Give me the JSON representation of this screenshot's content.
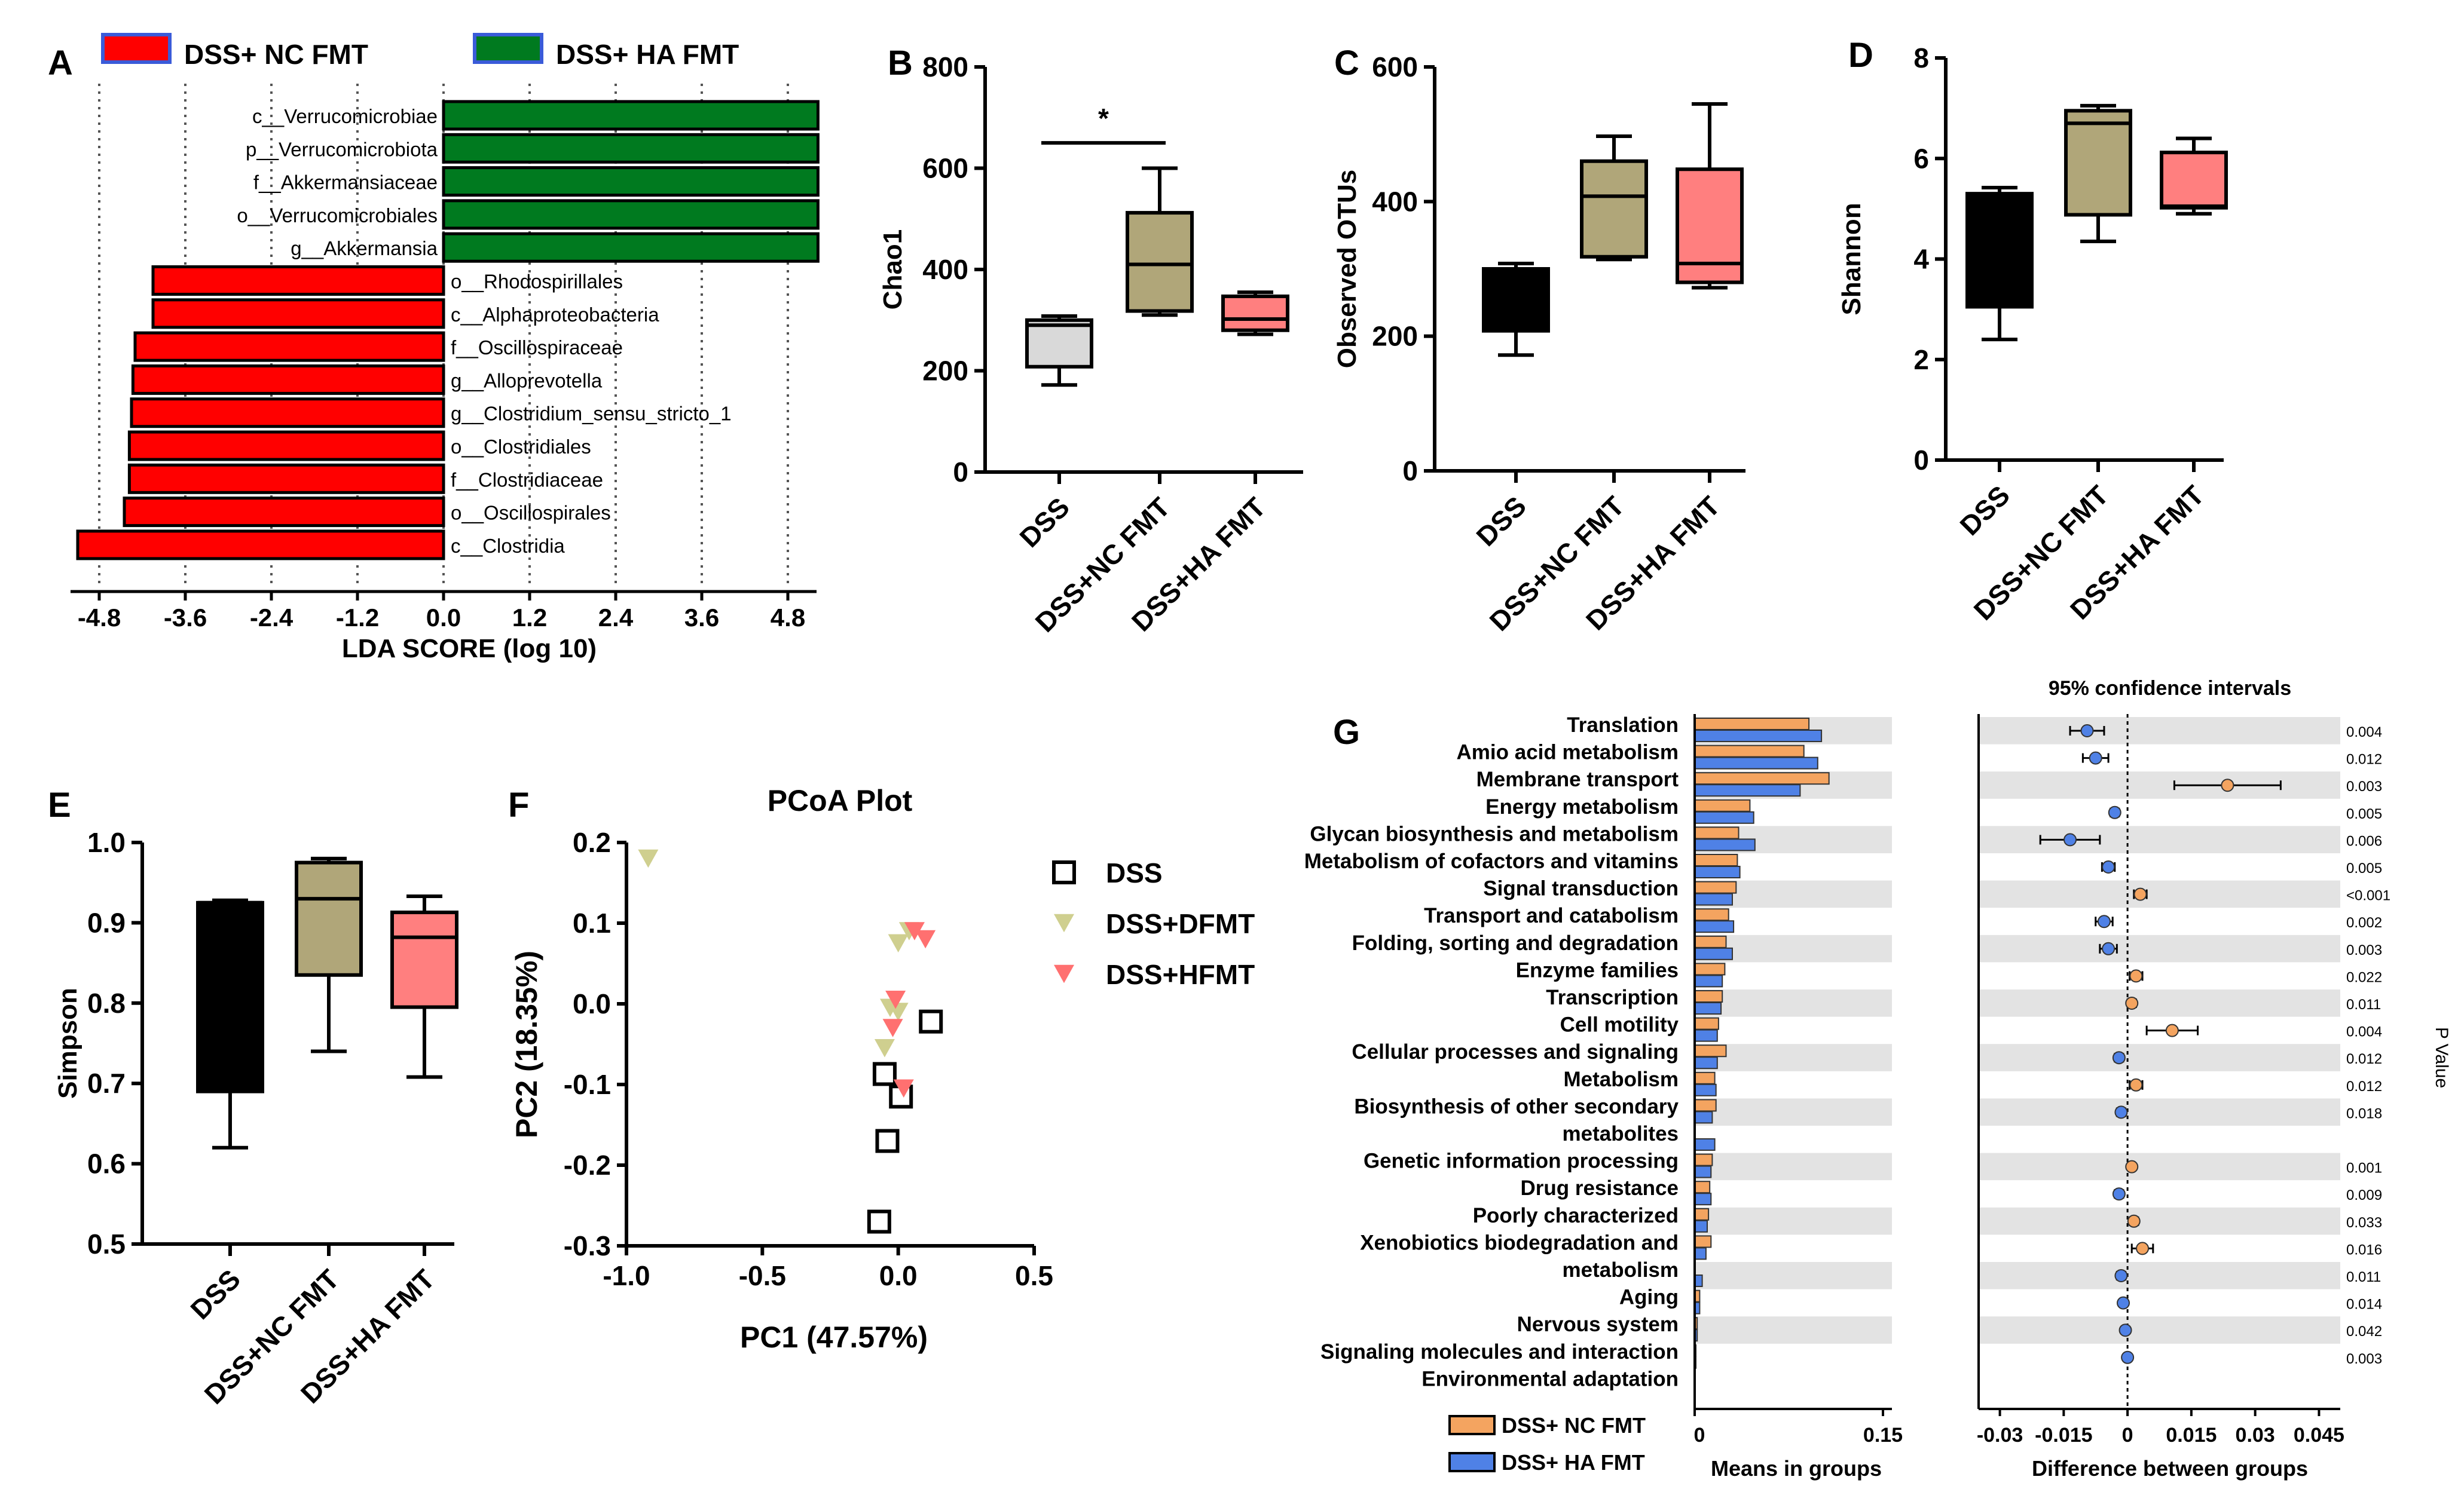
{
  "colors": {
    "nc_red": "#ff0000",
    "ha_green": "#007a1f",
    "dss_black": "#000000",
    "dss_gray": "#d9d9d9",
    "nc_olive": "#b0a679",
    "ha_pink": "#ff7f7f",
    "orange": "#f4a460",
    "blue": "#4f81e6",
    "stripe": "#e3e3e3"
  },
  "chart_data": [
    {
      "panel": "A",
      "type": "bar",
      "orientation": "horizontal",
      "legend": [
        "DSS+ NC FMT",
        "DSS+ HA FMT"
      ],
      "xlabel": "LDA SCORE (log 10)",
      "xlim": [
        -5.2,
        5.2
      ],
      "xticks": [
        -4.8,
        -3.6,
        -2.4,
        -1.2,
        0.0,
        1.2,
        2.4,
        3.6,
        4.8
      ],
      "xtick_labels": [
        "-4.8",
        "-3.6",
        "-2.4",
        "-1.2",
        "0.0",
        "1.2",
        "2.4",
        "3.6",
        "4.8"
      ],
      "categories": [
        "c__Verrucomicrobiae",
        "p__Verrucomicrobiota",
        "f__Akkermansiaceae",
        "o__Verrucomicrobiales",
        "g__Akkermansia",
        "o__Rhodospirillales",
        "c__Alphaproteobacteria",
        "f__Oscillospiraceae",
        "g__Alloprevotella",
        "g__Clostridium_sensu_stricto_1",
        "o__Clostridiales",
        "f__Clostridiaceae",
        "o__Oscillospirales",
        "c__Clostridia"
      ],
      "values": [
        5.22,
        5.22,
        5.22,
        5.22,
        5.22,
        -4.05,
        -4.05,
        -4.3,
        -4.33,
        -4.35,
        -4.38,
        -4.38,
        -4.45,
        -5.1
      ]
    },
    {
      "panel": "B",
      "type": "box",
      "ylabel": "Chao1",
      "ylim": [
        0,
        800
      ],
      "yticks": [
        "0",
        "200",
        "400",
        "600",
        "800"
      ],
      "categories": [
        "DSS",
        "DSS+NC FMT",
        "DSS+HA FMT"
      ],
      "boxes": [
        {
          "min": 172,
          "q1": 208,
          "median": 290,
          "q3": 300,
          "max": 308
        },
        {
          "min": 310,
          "q1": 318,
          "median": 410,
          "q3": 512,
          "max": 600
        },
        {
          "min": 272,
          "q1": 280,
          "median": 302,
          "q3": 347,
          "max": 355
        }
      ],
      "significance": {
        "label": "*",
        "between": [
          0,
          1
        ],
        "y": 650
      }
    },
    {
      "panel": "C",
      "type": "box",
      "ylabel": "Observed OTUs",
      "ylim": [
        0,
        600
      ],
      "yticks": [
        "0",
        "200",
        "400",
        "600"
      ],
      "categories": [
        "DSS",
        "DSS+NC FMT",
        "DSS+HA FMT"
      ],
      "boxes": [
        {
          "min": 172,
          "q1": 208,
          "median": 298,
          "q3": 300,
          "max": 308
        },
        {
          "min": 314,
          "q1": 318,
          "median": 408,
          "q3": 460,
          "max": 497
        },
        {
          "min": 272,
          "q1": 280,
          "median": 308,
          "q3": 448,
          "max": 545
        }
      ]
    },
    {
      "panel": "D",
      "type": "box",
      "ylabel": "Shannon",
      "ylim": [
        0,
        8
      ],
      "yticks": [
        "0",
        "2",
        "4",
        "6",
        "8"
      ],
      "categories": [
        "DSS",
        "DSS+NC FMT",
        "DSS+HA FMT"
      ],
      "boxes": [
        {
          "min": 2.4,
          "q1": 3.05,
          "median": 5.25,
          "q3": 5.3,
          "max": 5.42
        },
        {
          "min": 4.35,
          "q1": 4.88,
          "median": 6.7,
          "q3": 6.95,
          "max": 7.05
        },
        {
          "min": 4.9,
          "q1": 5.02,
          "median": 5.05,
          "q3": 6.12,
          "max": 6.4
        }
      ]
    },
    {
      "panel": "E",
      "type": "box",
      "ylabel": "Simpson",
      "ylim": [
        0.5,
        1.0
      ],
      "yticks": [
        "0.5",
        "0.6",
        "0.7",
        "0.8",
        "0.9",
        "1.0"
      ],
      "categories": [
        "DSS",
        "DSS+NC FMT",
        "DSS+HA FMT"
      ],
      "boxes": [
        {
          "min": 0.62,
          "q1": 0.69,
          "median": 0.925,
          "q3": 0.925,
          "max": 0.928
        },
        {
          "min": 0.74,
          "q1": 0.835,
          "median": 0.93,
          "q3": 0.975,
          "max": 0.98
        },
        {
          "min": 0.708,
          "q1": 0.795,
          "median": 0.882,
          "q3": 0.913,
          "max": 0.933
        }
      ]
    },
    {
      "panel": "F",
      "type": "scatter",
      "title": "PCoA Plot",
      "xlabel": "PC1 (47.57%)",
      "ylabel": "PC2 (18.35%)",
      "xlim": [
        -1.0,
        0.5
      ],
      "ylim": [
        -0.3,
        0.2
      ],
      "xticks": [
        "-1.0",
        "-0.5",
        "0.0",
        "0.5"
      ],
      "yticks": [
        "-0.3",
        "-0.2",
        "-0.1",
        "0.0",
        "0.1",
        "0.2"
      ],
      "series": [
        {
          "name": "DSS",
          "marker": "square",
          "points": [
            [
              0.12,
              -0.022
            ],
            [
              -0.05,
              -0.087
            ],
            [
              0.01,
              -0.115
            ],
            [
              -0.04,
              -0.17
            ],
            [
              -0.07,
              -0.27
            ]
          ]
        },
        {
          "name": "DSS+DFMT",
          "marker": "triangle",
          "points": [
            [
              -0.92,
              0.18
            ],
            [
              0.04,
              0.09
            ],
            [
              0.0,
              0.075
            ],
            [
              -0.03,
              -0.005
            ],
            [
              -0.05,
              -0.055
            ],
            [
              0.0,
              -0.01
            ]
          ]
        },
        {
          "name": "DSS+HFMT",
          "marker": "triangle",
          "points": [
            [
              0.1,
              0.08
            ],
            [
              -0.01,
              0.005
            ],
            [
              -0.02,
              -0.03
            ],
            [
              0.02,
              -0.105
            ],
            [
              0.06,
              0.09
            ]
          ]
        }
      ]
    },
    {
      "panel": "G",
      "type": "bar",
      "orientation": "horizontal",
      "legend": [
        "DSS+ NC FMT",
        "DSS+ HA FMT"
      ],
      "left_xlabel": "Means in groups",
      "left_xticks": [
        "0",
        "0.15"
      ],
      "left_xlim": [
        0,
        0.15
      ],
      "ci_title": "95% confidence intervals",
      "right_xlabel": "Difference  between groups",
      "right_xticks": [
        "-0.03",
        "-0.015",
        "0",
        "0.015",
        "0.03",
        "0.045"
      ],
      "right_xlim": [
        -0.035,
        0.05
      ],
      "pvalue_label": "P Value",
      "categories": [
        "Translation",
        "Amio acid metabolism",
        "Membrane transport",
        "Energy metabolism",
        "Glycan biosynthesis and metabolism",
        "Metabolism  of cofactors and vitamins",
        "Signal transduction",
        "Transport and catabolism",
        "Folding, sorting and degradation",
        "Enzyme families",
        "Transcription",
        "Cell motility",
        "Cellular processes and signaling",
        "Metabolism",
        "Biosynthesis  of other secondary",
        "metabolites",
        "Genetic information  processing",
        "Drug resistance",
        "Poorly characterized",
        "Xenobiotics biodegradation  and",
        "metabolism",
        "Aging",
        "Nervous system",
        "Signaling molecules  and interaction",
        "Environmental adaptation"
      ],
      "series": [
        {
          "name": "DSS+ NC FMT",
          "values": [
            0.091,
            0.087,
            0.107,
            0.044,
            0.035,
            0.034,
            0.033,
            0.027,
            0.025,
            0.024,
            0.022,
            0.019,
            0.025,
            0.016,
            0.017,
            null,
            0.014,
            0.012,
            0.011,
            0.013,
            null,
            0.004,
            0.002,
            0.001,
            null
          ]
        },
        {
          "name": "DSS+ HA FMT",
          "values": [
            0.101,
            0.098,
            0.084,
            0.047,
            0.048,
            0.036,
            0.03,
            0.031,
            0.03,
            0.022,
            0.021,
            0.018,
            0.018,
            0.017,
            0.014,
            0.016,
            0.013,
            0.013,
            0.01,
            0.009,
            0.006,
            0.004,
            0.002,
            0.001,
            0.0
          ]
        }
      ],
      "ci": [
        {
          "diff": -0.0095,
          "lo": -0.0135,
          "hi": -0.0055,
          "p": "0.004"
        },
        {
          "diff": -0.0075,
          "lo": -0.0105,
          "hi": -0.0045,
          "p": "0.012"
        },
        {
          "diff": 0.0235,
          "lo": 0.011,
          "hi": 0.036,
          "p": "0.003"
        },
        {
          "diff": -0.003,
          "lo": -0.004,
          "hi": -0.002,
          "p": "0.005"
        },
        {
          "diff": -0.0135,
          "lo": -0.0205,
          "hi": -0.0065,
          "p": "0.006"
        },
        {
          "diff": -0.0045,
          "lo": -0.006,
          "hi": -0.003,
          "p": "0.005"
        },
        {
          "diff": 0.003,
          "lo": 0.0015,
          "hi": 0.0045,
          "p": "<0.001"
        },
        {
          "diff": -0.0055,
          "lo": -0.0075,
          "hi": -0.0035,
          "p": "0.002"
        },
        {
          "diff": -0.0045,
          "lo": -0.0065,
          "hi": -0.0025,
          "p": "0.003"
        },
        {
          "diff": 0.002,
          "lo": 0.0005,
          "hi": 0.0035,
          "p": "0.022"
        },
        {
          "diff": 0.001,
          "lo": 0.0,
          "hi": 0.002,
          "p": "0.011"
        },
        {
          "diff": 0.0105,
          "lo": 0.0045,
          "hi": 0.0165,
          "p": "0.004"
        },
        {
          "diff": -0.002,
          "lo": -0.003,
          "hi": -0.001,
          "p": "0.012"
        },
        {
          "diff": 0.002,
          "lo": 0.0005,
          "hi": 0.0035,
          "p": "0.012"
        },
        {
          "diff": -0.0015,
          "lo": -0.0025,
          "hi": -0.0005,
          "p": "0.018"
        },
        {
          "diff": 0.001,
          "lo": 0.0002,
          "hi": 0.0018,
          "p": "0.001"
        },
        {
          "diff": -0.002,
          "lo": -0.003,
          "hi": -0.001,
          "p": "0.009"
        },
        {
          "diff": 0.0015,
          "lo": 0.0005,
          "hi": 0.0025,
          "p": "0.033"
        },
        {
          "diff": 0.0035,
          "lo": 0.001,
          "hi": 0.006,
          "p": "0.016"
        },
        {
          "diff": -0.0015,
          "lo": -0.0025,
          "hi": -0.0005,
          "p": "0.011"
        },
        {
          "diff": -0.001,
          "lo": -0.0018,
          "hi": -0.0002,
          "p": "0.014"
        },
        {
          "diff": -0.0005,
          "lo": -0.001,
          "hi": 0.0,
          "p": "0.042"
        },
        {
          "diff": 0.0,
          "lo": -0.0005,
          "hi": 0.0005,
          "p": "0.003"
        }
      ]
    }
  ]
}
